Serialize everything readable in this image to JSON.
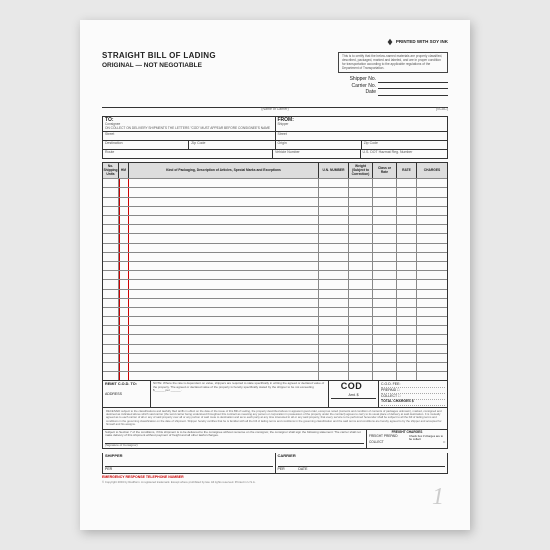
{
  "logo": {
    "text": "PRINTED WITH SOY INK"
  },
  "header": {
    "title": "STRAIGHT BILL OF LADING",
    "subtitle": "ORIGINAL — NOT NEGOTIABLE",
    "cert": "This is to certify that the below-named materials are properly classified, described, packaged, marked and labeled, and are in proper condition for transportation according to the applicable regulations of the Department of Transportation."
  },
  "meta": {
    "shipper_no_label": "Shipper No.",
    "carrier_no_label": "Carrier No.",
    "date_label": "Date",
    "name_of_carrier": "(Name of Carrier)",
    "scac": "(SCAC)"
  },
  "tofrom": {
    "to_label": "TO:",
    "to_sub": "Consignee",
    "from_label": "FROM:",
    "from_sub": "Shipper",
    "note": "ON COLLECT ON DELIVERY SHIPMENTS THE LETTERS \"COD\" MUST APPEAR BEFORE CONSIGNEE'S NAME",
    "street": "Street",
    "destination": "Destination",
    "zip": "Zip Code",
    "origin": "Origin",
    "route": "Route",
    "vehicle": "Vehicle Number",
    "hazmat": "U.S. DOT Hazmat Reg. Number"
  },
  "table": {
    "columns": {
      "units": "No. Shipping Units",
      "hm": "HM",
      "desc": "Kind of Packaging, Description of Articles, Special Marks and Exceptions",
      "un": "U.N. NUMBER",
      "weight": "Weight (Subject to Correction)",
      "class": "Class or Rate",
      "rate": "RATE",
      "charges": "CHARGES"
    },
    "row_count": 22
  },
  "below": {
    "remit_label": "REMIT C.O.D. TO:",
    "address_label": "ADDRESS",
    "note": "NOTE: Where the rate is dependent on value, shippers are required to state specifically in writing the agreed or declared value of the property. The agreed or declared value of the property is hereby specifically stated by the shipper to be not exceeding $______ per ______.",
    "cod": "COD",
    "amt": "Amt. $",
    "cod_fee": "C.O.D. FEE:",
    "prepaid": "PREPAID □",
    "collect": "COLLECT □",
    "total": "TOTAL CHARGES $"
  },
  "fine": {
    "text": "RECEIVED subject to the classifications and lawfully filed tariffs in effect on the date of the issue of this Bill of Lading, the property described above in apparent good order, except as noted (contents and condition of contents of packages unknown), marked, consigned and destined as indicated above which said carrier (the word carrier being understood throughout this contract as meaning any person or corporation in possession of the property under the contract) agrees to carry to its usual place of delivery at said destination. It is mutually agreed as to each carrier of all or any of said property over all or any portion of said route to destination and as to each party at any time interested in all or any said property, that every service to be performed hereunder shall be subject to all the bill of lading terms and conditions in the governing classification on the date of shipment. Shipper hereby certifies that he is familiar with all the bill of lading terms and conditions in the governing classification and the said terms and conditions are hereby agreed to by the shipper and accepted for himself and his assigns."
  },
  "freight": {
    "text": "Subject to Section 7 of the conditions, if this shipment is to be delivered to the consignee without recourse on the consignor, the consignor shall sign the following statement: The carrier shall not make delivery of this shipment without payment of freight and all other lawful charges.",
    "sig": "(Signature of Consignor)",
    "charges_label": "FREIGHT CHARGES",
    "prepaid": "FREIGHT PREPAID",
    "collect": "COLLECT",
    "check": "Check box if charges are to be collect"
  },
  "sig": {
    "shipper": "SHIPPER",
    "carrier": "CARRIER",
    "per": "PER",
    "date": "DATE"
  },
  "emerg": "EMERGENCY RESPONSE TELEPHONE NUMBER",
  "footer": "© Copyright 2004 by Rediform. A registered trademark. Except where prohibited by law. All rights reserved. Printed in U.S.A.",
  "form_num": "1",
  "printed": "PRINTED IN U.S.A."
}
